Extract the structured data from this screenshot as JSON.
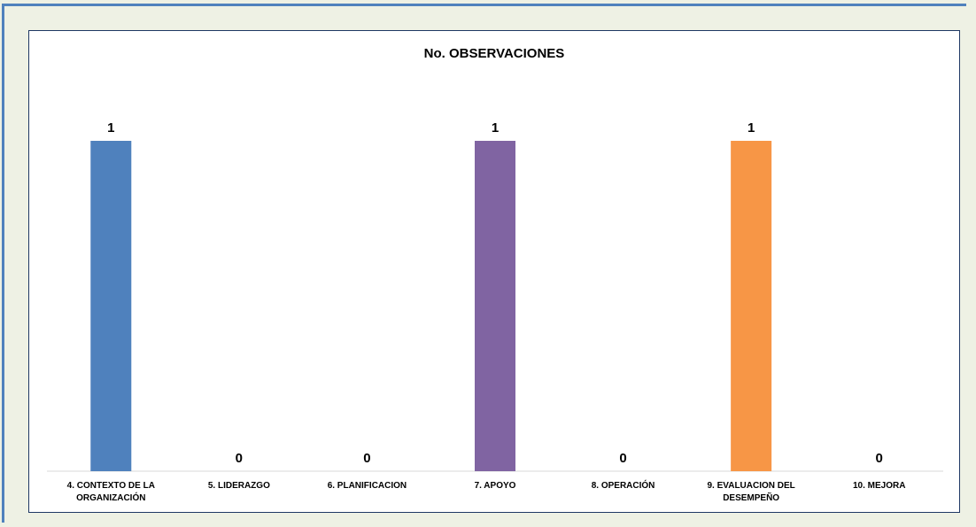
{
  "chart_data": {
    "type": "bar",
    "title": "No. OBSERVACIONES",
    "categories": [
      "4. CONTEXTO DE LA ORGANIZACIÓN",
      "5. LIDERAZGO",
      "6. PLANIFICACION",
      "7. APOYO",
      "8. OPERACIÓN",
      "9. EVALUACION DEL DESEMPEÑO",
      "10. MEJORA"
    ],
    "category_lines": [
      [
        "4. CONTEXTO DE LA",
        "ORGANIZACIÓN"
      ],
      [
        "5. LIDERAZGO"
      ],
      [
        "6. PLANIFICACION"
      ],
      [
        "7. APOYO"
      ],
      [
        "8. OPERACIÓN"
      ],
      [
        "9. EVALUACION DEL",
        "DESEMPEÑO"
      ],
      [
        "10. MEJORA"
      ]
    ],
    "values": [
      1,
      0,
      0,
      1,
      0,
      1,
      0
    ],
    "colors": [
      "#4f81bd",
      "#c0504d",
      "#9bbb59",
      "#8064a2",
      "#4bacc6",
      "#f79646",
      "#2c4d75"
    ],
    "data_labels": [
      "1",
      "0",
      "0",
      "1",
      "0",
      "1",
      "0"
    ],
    "ylim": [
      0,
      1
    ],
    "grid": false,
    "legend": "none",
    "xlabel": "",
    "ylabel": ""
  }
}
